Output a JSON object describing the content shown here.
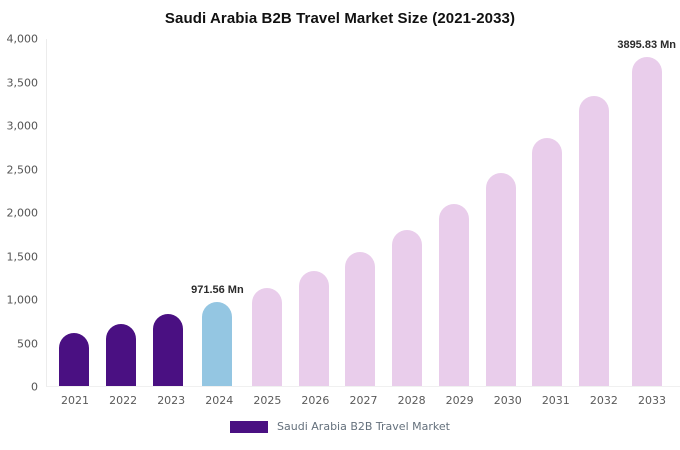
{
  "chart_data": {
    "type": "bar",
    "title": "Saudi Arabia B2B Travel Market Size (2021-2033)",
    "categories": [
      "2021",
      "2022",
      "2023",
      "2024",
      "2025",
      "2026",
      "2027",
      "2028",
      "2029",
      "2030",
      "2031",
      "2032",
      "2033"
    ],
    "values": [
      610,
      715,
      833,
      971.56,
      1134,
      1323,
      1543,
      1801,
      2101,
      2452,
      2860,
      3338,
      3895.83
    ],
    "data_labels": [
      "",
      "",
      "",
      "971.56 Mn",
      "",
      "",
      "",
      "",
      "",
      "",
      "",
      "",
      "3895.83 Mn"
    ],
    "bar_colors": [
      "#4a1082",
      "#4a1082",
      "#4a1082",
      "#94c6e2",
      "#e9cdeb",
      "#e9cdeb",
      "#e9cdeb",
      "#e9cdeb",
      "#e9cdeb",
      "#e9cdeb",
      "#e9cdeb",
      "#e9cdeb",
      "#e9cdeb"
    ],
    "ylim": [
      0,
      4000
    ],
    "y_ticks": [
      "4,000",
      "3,500",
      "3,000",
      "2,500",
      "2,000",
      "1,500",
      "1,000",
      "500",
      "0"
    ],
    "xlabel": "",
    "ylabel": "",
    "grid": false,
    "legend_position": "bottom",
    "legend": {
      "label": "Saudi Arabia B2B Travel Market",
      "swatch_color": "#4a1082"
    },
    "colors": {
      "historical_bar": "#4a1082",
      "base_year_bar": "#94c6e2",
      "forecast_bar": "#e9cdeb",
      "axis_text": "#555555",
      "title_text": "#111111"
    }
  }
}
